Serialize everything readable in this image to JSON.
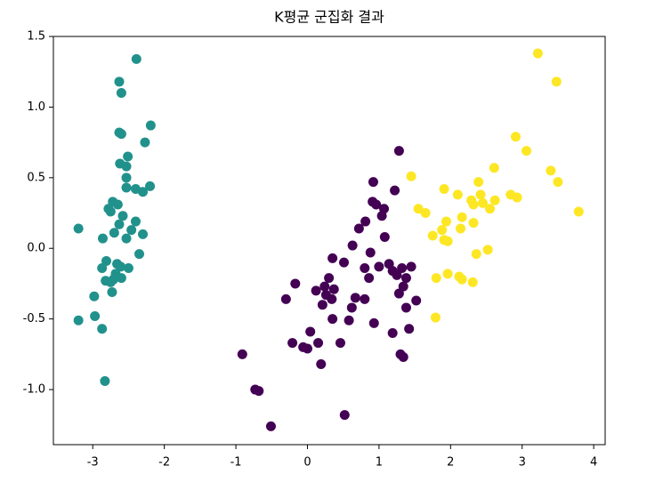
{
  "chart_data": {
    "type": "scatter",
    "title": "K평균 군집화 결과",
    "xlim": [
      -3.55,
      4.16
    ],
    "ylim": [
      -1.39,
      1.5
    ],
    "xticks": [
      -3,
      -2,
      -1,
      0,
      1,
      2,
      3,
      4
    ],
    "yticks": [
      {
        "value": -1.0,
        "label": "-1.0"
      },
      -0.5,
      {
        "value": 0.0,
        "label": "0.0"
      },
      0.5,
      {
        "value": 1.0,
        "label": "1.0"
      },
      1.5
    ],
    "grid": false,
    "series": [
      {
        "color": "#21918c",
        "x": [
          -2.39,
          -2.63,
          -2.6,
          -2.19,
          -2.63,
          -2.6,
          -2.27,
          -2.51,
          -2.62,
          -2.53,
          -2.53,
          -2.2,
          -2.53,
          -2.4,
          -2.3,
          -2.72,
          -2.65,
          -2.78,
          -2.75,
          -2.58,
          -2.4,
          -2.63,
          -3.2,
          -2.46,
          -2.7,
          -2.3,
          -2.53,
          -2.86,
          -2.35,
          -2.81,
          -2.66,
          -2.61,
          -2.87,
          -2.5,
          -2.68,
          -2.6,
          -2.82,
          -2.75,
          -2.71,
          -2.73,
          -2.98,
          -2.97,
          -3.2,
          -2.87,
          -2.83
        ],
        "y": [
          1.34,
          1.18,
          1.1,
          0.87,
          0.82,
          0.81,
          0.75,
          0.65,
          0.6,
          0.58,
          0.5,
          0.44,
          0.43,
          0.42,
          0.4,
          0.33,
          0.31,
          0.28,
          0.26,
          0.23,
          0.19,
          0.17,
          0.14,
          0.13,
          0.11,
          0.1,
          0.07,
          0.07,
          -0.04,
          -0.09,
          -0.11,
          -0.13,
          -0.14,
          -0.14,
          -0.18,
          -0.21,
          -0.23,
          -0.24,
          -0.22,
          -0.31,
          -0.34,
          -0.48,
          -0.51,
          -0.57,
          -0.94
        ]
      },
      {
        "color": "#440154",
        "x": [
          1.28,
          0.92,
          1.22,
          0.91,
          0.96,
          1.07,
          1.04,
          0.81,
          0.72,
          1.08,
          0.63,
          0.88,
          0.35,
          0.51,
          1.14,
          1.0,
          0.8,
          1.32,
          1.45,
          1.19,
          1.25,
          1.38,
          0.86,
          0.3,
          -0.17,
          0.24,
          1.34,
          0.37,
          0.12,
          1.28,
          0.26,
          0.67,
          0.34,
          -0.3,
          0.8,
          1.52,
          0.21,
          0.62,
          1.38,
          0.35,
          0.58,
          0.93,
          1.42,
          0.04,
          1.19,
          0.46,
          -0.21,
          0.15,
          -0.06,
          0,
          1.3,
          1.34,
          -0.91,
          0.19,
          -0.73,
          -0.68,
          0.52,
          -0.51
        ],
        "y": [
          0.69,
          0.47,
          0.41,
          0.33,
          0.31,
          0.28,
          0.23,
          0.19,
          0.14,
          0.08,
          0.02,
          -0.03,
          -0.07,
          -0.1,
          -0.11,
          -0.13,
          -0.14,
          -0.14,
          -0.13,
          -0.16,
          -0.19,
          -0.21,
          -0.21,
          -0.21,
          -0.25,
          -0.27,
          -0.27,
          -0.29,
          -0.3,
          -0.32,
          -0.33,
          -0.35,
          -0.36,
          -0.36,
          -0.36,
          -0.37,
          -0.4,
          -0.42,
          -0.42,
          -0.5,
          -0.51,
          -0.53,
          -0.57,
          -0.59,
          -0.6,
          -0.67,
          -0.67,
          -0.67,
          -0.7,
          -0.71,
          -0.75,
          -0.77,
          -0.75,
          -0.82,
          -1.0,
          -1.01,
          -1.18,
          -1.26
        ]
      },
      {
        "color": "#fde725",
        "x": [
          3.22,
          3.48,
          2.91,
          3.06,
          2.61,
          3.4,
          1.45,
          2.39,
          3.5,
          1.91,
          2.1,
          2.42,
          2.84,
          2.93,
          2.29,
          2.62,
          2.45,
          2.32,
          2.55,
          1.55,
          1.65,
          3.79,
          2.16,
          1.94,
          2.32,
          2.14,
          1.88,
          1.75,
          1.91,
          1.96,
          2.52,
          2.36,
          1.96,
          1.8,
          2.12,
          2.16,
          2.31,
          1.79
        ],
        "y": [
          1.38,
          1.18,
          0.79,
          0.69,
          0.57,
          0.55,
          0.51,
          0.47,
          0.47,
          0.42,
          0.38,
          0.38,
          0.38,
          0.36,
          0.34,
          0.34,
          0.32,
          0.31,
          0.28,
          0.28,
          0.25,
          0.26,
          0.22,
          0.19,
          0.18,
          0.14,
          0.13,
          0.09,
          0.06,
          0.05,
          -0.01,
          -0.04,
          -0.18,
          -0.21,
          -0.2,
          -0.22,
          -0.24,
          -0.49
        ]
      }
    ]
  }
}
